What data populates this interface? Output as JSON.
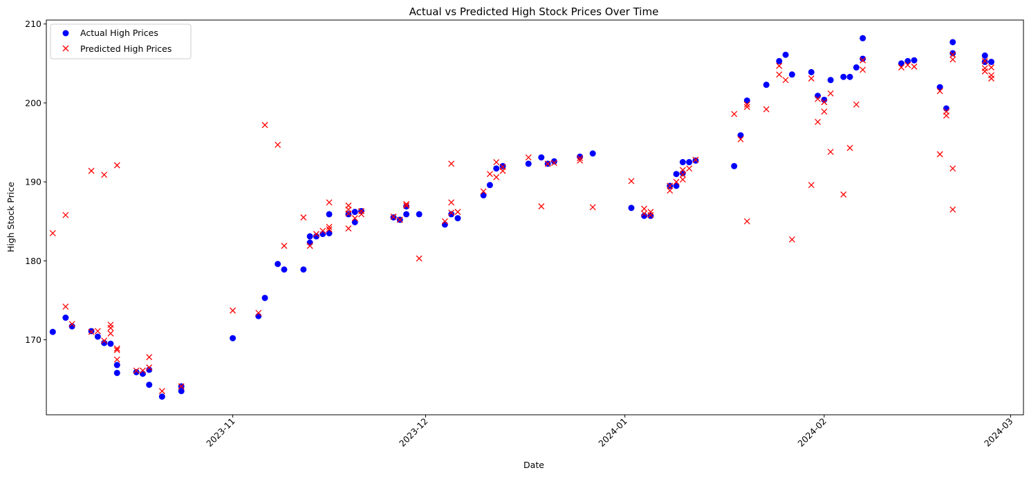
{
  "chart_data": {
    "type": "scatter",
    "title": "Actual vs Predicted High Stock Prices Over Time",
    "xlabel": "Date",
    "ylabel": "High Stock Price",
    "xlim": [
      "2023-10-03",
      "2024-03-03"
    ],
    "ylim": [
      160.5,
      210.5
    ],
    "x_ticks": [
      "2023-11",
      "2023-12",
      "2024-01",
      "2024-02",
      "2024-03"
    ],
    "x_tick_dates": [
      "2023-11-01",
      "2023-12-01",
      "2024-01-01",
      "2024-02-01",
      "2024-03-01"
    ],
    "y_ticks": [
      170,
      180,
      190,
      200,
      210
    ],
    "legend_position": "top-left",
    "grid": false,
    "series": [
      {
        "name": "Actual High Prices",
        "marker": "circle",
        "color": "#0000ff",
        "points": [
          [
            "2023-10-04",
            171.0
          ],
          [
            "2023-10-06",
            172.8
          ],
          [
            "2023-10-07",
            171.7
          ],
          [
            "2023-10-10",
            171.1
          ],
          [
            "2023-10-11",
            170.4
          ],
          [
            "2023-10-12",
            169.6
          ],
          [
            "2023-10-13",
            169.5
          ],
          [
            "2023-10-14",
            166.8
          ],
          [
            "2023-10-14",
            165.8
          ],
          [
            "2023-10-17",
            165.9
          ],
          [
            "2023-10-18",
            165.7
          ],
          [
            "2023-10-19",
            166.2
          ],
          [
            "2023-10-19",
            164.3
          ],
          [
            "2023-10-21",
            162.8
          ],
          [
            "2023-10-24",
            163.5
          ],
          [
            "2023-10-24",
            164.1
          ],
          [
            "2023-11-01",
            170.2
          ],
          [
            "2023-11-05",
            173.0
          ],
          [
            "2023-11-06",
            175.3
          ],
          [
            "2023-11-08",
            179.6
          ],
          [
            "2023-11-09",
            178.9
          ],
          [
            "2023-11-12",
            178.9
          ],
          [
            "2023-11-13",
            182.3
          ],
          [
            "2023-11-13",
            183.1
          ],
          [
            "2023-11-14",
            183.1
          ],
          [
            "2023-11-15",
            183.4
          ],
          [
            "2023-11-16",
            183.5
          ],
          [
            "2023-11-16",
            185.9
          ],
          [
            "2023-11-19",
            185.9
          ],
          [
            "2023-11-20",
            184.9
          ],
          [
            "2023-11-20",
            186.2
          ],
          [
            "2023-11-21",
            186.3
          ],
          [
            "2023-11-26",
            185.5
          ],
          [
            "2023-11-27",
            185.2
          ],
          [
            "2023-11-28",
            185.9
          ],
          [
            "2023-11-28",
            186.9
          ],
          [
            "2023-11-30",
            185.9
          ],
          [
            "2023-12-04",
            184.6
          ],
          [
            "2023-12-05",
            185.9
          ],
          [
            "2023-12-06",
            185.4
          ],
          [
            "2023-12-10",
            188.3
          ],
          [
            "2023-12-11",
            189.6
          ],
          [
            "2023-12-12",
            191.7
          ],
          [
            "2023-12-13",
            192.0
          ],
          [
            "2023-12-17",
            192.3
          ],
          [
            "2023-12-19",
            193.1
          ],
          [
            "2023-12-20",
            192.3
          ],
          [
            "2023-12-21",
            192.6
          ],
          [
            "2023-12-25",
            193.2
          ],
          [
            "2023-12-27",
            193.6
          ],
          [
            "2024-01-02",
            186.7
          ],
          [
            "2024-01-04",
            185.7
          ],
          [
            "2024-01-05",
            185.7
          ],
          [
            "2024-01-08",
            189.5
          ],
          [
            "2024-01-09",
            189.5
          ],
          [
            "2024-01-09",
            191.0
          ],
          [
            "2024-01-10",
            191.1
          ],
          [
            "2024-01-10",
            192.5
          ],
          [
            "2024-01-11",
            192.5
          ],
          [
            "2024-01-12",
            192.7
          ],
          [
            "2024-01-18",
            192.0
          ],
          [
            "2024-01-19",
            195.9
          ],
          [
            "2024-01-20",
            200.3
          ],
          [
            "2024-01-23",
            202.3
          ],
          [
            "2024-01-25",
            205.3
          ],
          [
            "2024-01-26",
            206.1
          ],
          [
            "2024-01-27",
            203.6
          ],
          [
            "2024-01-30",
            203.9
          ],
          [
            "2024-01-31",
            200.9
          ],
          [
            "2024-02-01",
            200.4
          ],
          [
            "2024-02-02",
            202.9
          ],
          [
            "2024-02-04",
            203.3
          ],
          [
            "2024-02-05",
            203.3
          ],
          [
            "2024-02-06",
            204.5
          ],
          [
            "2024-02-07",
            205.6
          ],
          [
            "2024-02-07",
            208.2
          ],
          [
            "2024-02-13",
            205.0
          ],
          [
            "2024-02-14",
            205.3
          ],
          [
            "2024-02-15",
            205.4
          ],
          [
            "2024-02-19",
            202.0
          ],
          [
            "2024-02-20",
            199.3
          ],
          [
            "2024-02-21",
            206.3
          ],
          [
            "2024-02-21",
            207.7
          ],
          [
            "2024-02-26",
            206.0
          ],
          [
            "2024-02-26",
            205.2
          ],
          [
            "2024-02-27",
            205.2
          ]
        ]
      },
      {
        "name": "Predicted High Prices",
        "marker": "x",
        "color": "#ff0000",
        "points": [
          [
            "2023-10-04",
            183.5
          ],
          [
            "2023-10-06",
            185.8
          ],
          [
            "2023-10-06",
            174.2
          ],
          [
            "2023-10-07",
            172.0
          ],
          [
            "2023-10-10",
            191.4
          ],
          [
            "2023-10-10",
            171.0
          ],
          [
            "2023-10-11",
            171.1
          ],
          [
            "2023-10-12",
            190.9
          ],
          [
            "2023-10-12",
            169.9
          ],
          [
            "2023-10-13",
            171.9
          ],
          [
            "2023-10-13",
            171.5
          ],
          [
            "2023-10-13",
            170.8
          ],
          [
            "2023-10-14",
            192.1
          ],
          [
            "2023-10-14",
            168.9
          ],
          [
            "2023-10-14",
            168.7
          ],
          [
            "2023-10-14",
            167.5
          ],
          [
            "2023-10-17",
            166.1
          ],
          [
            "2023-10-18",
            166.1
          ],
          [
            "2023-10-19",
            167.8
          ],
          [
            "2023-10-19",
            166.5
          ],
          [
            "2023-10-21",
            163.5
          ],
          [
            "2023-10-24",
            164.1
          ],
          [
            "2023-11-01",
            173.7
          ],
          [
            "2023-11-05",
            173.4
          ],
          [
            "2023-11-06",
            197.2
          ],
          [
            "2023-11-08",
            194.7
          ],
          [
            "2023-11-09",
            181.9
          ],
          [
            "2023-11-12",
            185.5
          ],
          [
            "2023-11-13",
            181.9
          ],
          [
            "2023-11-14",
            183.4
          ],
          [
            "2023-11-15",
            183.8
          ],
          [
            "2023-11-16",
            187.4
          ],
          [
            "2023-11-16",
            184.3
          ],
          [
            "2023-11-16",
            184.0
          ],
          [
            "2023-11-19",
            187.0
          ],
          [
            "2023-11-19",
            186.5
          ],
          [
            "2023-11-19",
            186.0
          ],
          [
            "2023-11-19",
            184.1
          ],
          [
            "2023-11-20",
            185.4
          ],
          [
            "2023-11-21",
            186.3
          ],
          [
            "2023-11-21",
            185.9
          ],
          [
            "2023-11-26",
            185.6
          ],
          [
            "2023-11-27",
            185.2
          ],
          [
            "2023-11-28",
            187.2
          ],
          [
            "2023-11-28",
            187.0
          ],
          [
            "2023-11-30",
            180.3
          ],
          [
            "2023-12-04",
            185.0
          ],
          [
            "2023-12-05",
            192.3
          ],
          [
            "2023-12-05",
            187.4
          ],
          [
            "2023-12-05",
            186.1
          ],
          [
            "2023-12-06",
            186.2
          ],
          [
            "2023-12-10",
            188.8
          ],
          [
            "2023-12-11",
            191.0
          ],
          [
            "2023-12-12",
            192.5
          ],
          [
            "2023-12-12",
            190.6
          ],
          [
            "2023-12-13",
            191.9
          ],
          [
            "2023-12-13",
            191.4
          ],
          [
            "2023-12-17",
            193.1
          ],
          [
            "2023-12-19",
            186.9
          ],
          [
            "2023-12-20",
            192.3
          ],
          [
            "2023-12-21",
            192.4
          ],
          [
            "2023-12-25",
            193.0
          ],
          [
            "2023-12-25",
            192.7
          ],
          [
            "2023-12-27",
            186.8
          ],
          [
            "2024-01-02",
            190.1
          ],
          [
            "2024-01-04",
            186.6
          ],
          [
            "2024-01-04",
            186.0
          ],
          [
            "2024-01-05",
            186.2
          ],
          [
            "2024-01-05",
            185.8
          ],
          [
            "2024-01-08",
            189.5
          ],
          [
            "2024-01-08",
            188.9
          ],
          [
            "2024-01-09",
            190.0
          ],
          [
            "2024-01-10",
            190.9
          ],
          [
            "2024-01-10",
            190.3
          ],
          [
            "2024-01-10",
            191.5
          ],
          [
            "2024-01-11",
            191.7
          ],
          [
            "2024-01-12",
            192.8
          ],
          [
            "2024-01-18",
            198.6
          ],
          [
            "2024-01-19",
            195.4
          ],
          [
            "2024-01-20",
            199.8
          ],
          [
            "2024-01-20",
            199.5
          ],
          [
            "2024-01-20",
            185.0
          ],
          [
            "2024-01-23",
            199.2
          ],
          [
            "2024-01-25",
            204.7
          ],
          [
            "2024-01-25",
            203.6
          ],
          [
            "2024-01-26",
            202.9
          ],
          [
            "2024-01-27",
            182.7
          ],
          [
            "2024-01-30",
            203.1
          ],
          [
            "2024-01-30",
            189.6
          ],
          [
            "2024-01-31",
            200.5
          ],
          [
            "2024-01-31",
            197.6
          ],
          [
            "2024-02-01",
            200.1
          ],
          [
            "2024-02-01",
            198.9
          ],
          [
            "2024-02-02",
            201.2
          ],
          [
            "2024-02-02",
            193.8
          ],
          [
            "2024-02-04",
            188.4
          ],
          [
            "2024-02-05",
            194.3
          ],
          [
            "2024-02-06",
            199.8
          ],
          [
            "2024-02-07",
            205.4
          ],
          [
            "2024-02-07",
            204.2
          ],
          [
            "2024-02-13",
            204.5
          ],
          [
            "2024-02-14",
            204.8
          ],
          [
            "2024-02-15",
            204.6
          ],
          [
            "2024-02-19",
            201.5
          ],
          [
            "2024-02-19",
            193.5
          ],
          [
            "2024-02-20",
            198.9
          ],
          [
            "2024-02-20",
            198.4
          ],
          [
            "2024-02-21",
            206.1
          ],
          [
            "2024-02-21",
            205.5
          ],
          [
            "2024-02-21",
            191.7
          ],
          [
            "2024-02-21",
            186.5
          ],
          [
            "2024-02-26",
            205.3
          ],
          [
            "2024-02-26",
            204.4
          ],
          [
            "2024-02-26",
            204.0
          ],
          [
            "2024-02-27",
            204.5
          ],
          [
            "2024-02-27",
            203.5
          ],
          [
            "2024-02-27",
            203.1
          ]
        ]
      }
    ]
  }
}
